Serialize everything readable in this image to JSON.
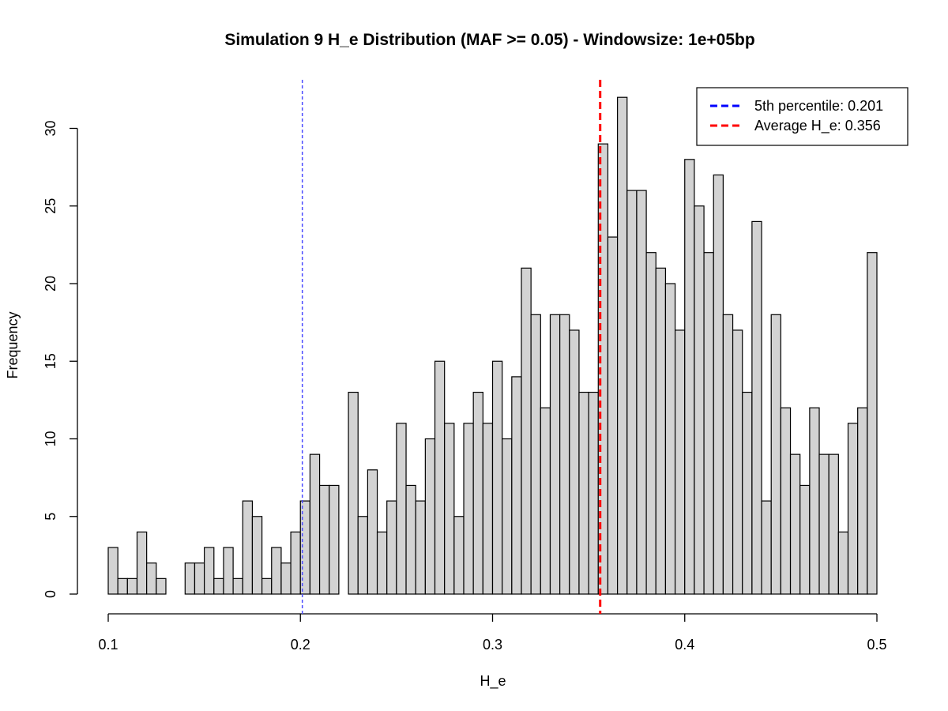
{
  "chart_data": {
    "type": "bar",
    "title": "Simulation 9 H_e Distribution (MAF >= 0.05) - Windowsize: 1e+05bp",
    "xlabel": "H_e",
    "ylabel": "Frequency",
    "xlim": [
      0.1,
      0.5
    ],
    "ylim": [
      0,
      32
    ],
    "bin_start": 0.1,
    "bin_width": 0.005,
    "x_ticks": [
      "0.1",
      "0.2",
      "0.3",
      "0.4",
      "0.5"
    ],
    "y_ticks": [
      "0",
      "5",
      "10",
      "15",
      "20",
      "25",
      "30"
    ],
    "values": [
      3,
      1,
      1,
      4,
      2,
      1,
      0,
      0,
      2,
      2,
      3,
      1,
      3,
      1,
      6,
      5,
      1,
      3,
      2,
      4,
      6,
      9,
      7,
      7,
      0,
      13,
      5,
      8,
      4,
      6,
      11,
      7,
      6,
      10,
      15,
      11,
      5,
      11,
      13,
      11,
      15,
      10,
      14,
      21,
      18,
      12,
      18,
      18,
      17,
      13,
      13,
      29,
      23,
      32,
      26,
      26,
      22,
      21,
      20,
      17,
      28,
      25,
      22,
      27,
      18,
      17,
      13,
      24,
      6,
      18,
      12,
      9,
      7,
      12,
      9,
      9,
      4,
      11,
      12,
      22
    ],
    "bar_fill": "#d3d3d3",
    "bar_stroke": "#000000",
    "grid": false,
    "reference_lines": [
      {
        "value": 0.201,
        "color": "#4b4bff",
        "style": "dashed"
      },
      {
        "value": 0.356,
        "color": "#ff0000",
        "style": "dashed"
      }
    ],
    "legend": {
      "position": "top-right",
      "entries": [
        {
          "label": "5th percentile:  0.201",
          "color": "#0000ff"
        },
        {
          "label": "Average H_e:  0.356",
          "color": "#ff0000"
        }
      ]
    }
  }
}
